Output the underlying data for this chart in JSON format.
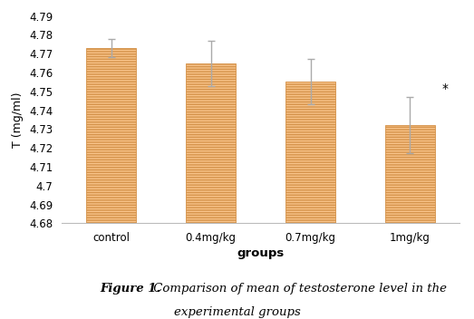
{
  "categories": [
    "control",
    "0.4mg/kg",
    "0.7mg/kg",
    "1mg/kg"
  ],
  "values": [
    4.773,
    4.765,
    4.755,
    4.732
  ],
  "errors": [
    0.005,
    0.012,
    0.012,
    0.015
  ],
  "bar_color": "#F9C48A",
  "bar_edgecolor": "#D4924A",
  "hatch": "------",
  "error_color": "#aaaaaa",
  "ylim": [
    4.68,
    4.79
  ],
  "ytick_values": [
    4.68,
    4.69,
    4.7,
    4.71,
    4.72,
    4.73,
    4.74,
    4.75,
    4.76,
    4.77,
    4.78,
    4.79
  ],
  "ytick_labels": [
    "4.68",
    "4.69",
    "4.7",
    "4.71",
    "4.72",
    "4.73",
    "4.74",
    "4.75",
    "4.76",
    "4.77",
    "4.78",
    "4.79"
  ],
  "xlabel": "groups",
  "ylabel": "T (mg/ml)",
  "significance": [
    false,
    false,
    false,
    true
  ],
  "sig_label": "*",
  "caption_bold": "Figure 1.",
  "caption_italic": " Comparison of mean of testosterone level in the\nexperimental groups",
  "background_color": "#ffffff",
  "bar_width": 0.5
}
